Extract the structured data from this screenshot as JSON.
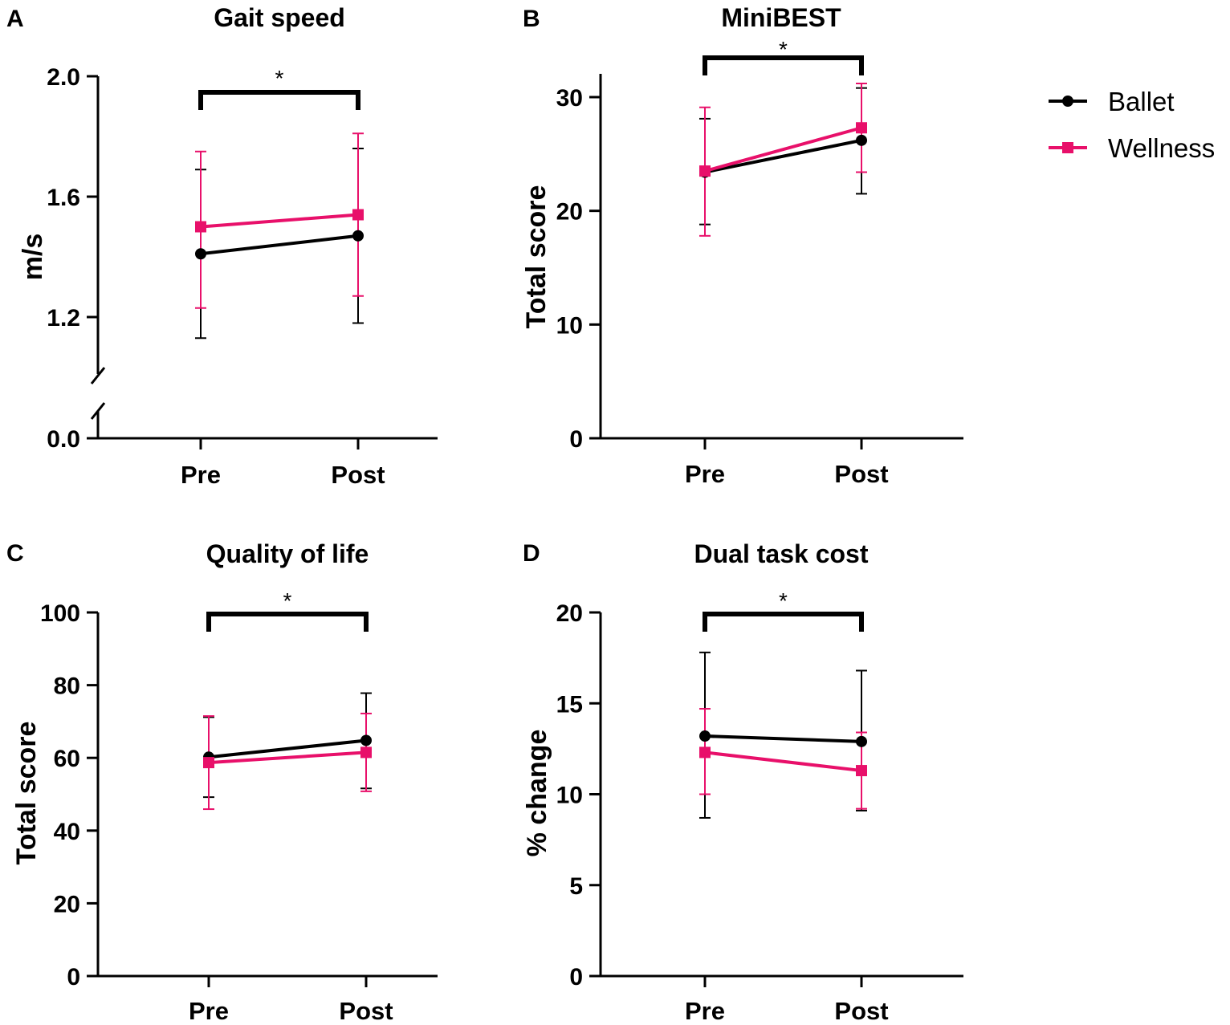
{
  "colors": {
    "ballet": "#000000",
    "wellness": "#e8106a"
  },
  "legend": [
    {
      "name": "Ballet",
      "color": "#000000",
      "marker": "circle"
    },
    {
      "name": "Wellness",
      "color": "#e8106a",
      "marker": "square"
    }
  ],
  "chart_data": [
    {
      "panel": "A",
      "type": "line",
      "title": "Gait speed",
      "ylabel": "m/s",
      "xlabel": "",
      "categories": [
        "Pre",
        "Post"
      ],
      "y_axis_break": true,
      "ylim": [
        1.0,
        2.0
      ],
      "yticks": [
        "0.0",
        "1.2",
        "1.6",
        "2.0"
      ],
      "significance": "*",
      "series": [
        {
          "name": "Ballet",
          "values": [
            1.41,
            1.47
          ],
          "err_low": [
            1.13,
            1.18
          ],
          "err_high": [
            1.69,
            1.76
          ]
        },
        {
          "name": "Wellness",
          "values": [
            1.5,
            1.54
          ],
          "err_low": [
            1.23,
            1.27
          ],
          "err_high": [
            1.75,
            1.81
          ]
        }
      ]
    },
    {
      "panel": "B",
      "type": "line",
      "title": "MiniBEST",
      "ylabel": "Total score",
      "xlabel": "",
      "categories": [
        "Pre",
        "Post"
      ],
      "ylim": [
        0,
        32
      ],
      "yticks": [
        "0",
        "10",
        "20",
        "30"
      ],
      "significance": "*",
      "series": [
        {
          "name": "Ballet",
          "values": [
            23.4,
            26.2
          ],
          "err_low": [
            18.8,
            21.5
          ],
          "err_high": [
            28.1,
            30.8
          ]
        },
        {
          "name": "Wellness",
          "values": [
            23.5,
            27.3
          ],
          "err_low": [
            17.8,
            23.4
          ],
          "err_high": [
            29.1,
            31.2
          ]
        }
      ]
    },
    {
      "panel": "C",
      "type": "line",
      "title": "Quality of life",
      "ylabel": "Total score",
      "xlabel": "",
      "categories": [
        "Pre",
        "Post"
      ],
      "ylim": [
        0,
        100
      ],
      "yticks": [
        "0",
        "20",
        "40",
        "60",
        "80",
        "100"
      ],
      "significance": "*",
      "series": [
        {
          "name": "Ballet",
          "values": [
            60.2,
            64.8
          ],
          "err_low": [
            49.2,
            51.6
          ],
          "err_high": [
            71.2,
            77.8
          ]
        },
        {
          "name": "Wellness",
          "values": [
            58.7,
            61.5
          ],
          "err_low": [
            45.9,
            50.8
          ],
          "err_high": [
            71.5,
            72.2
          ]
        }
      ]
    },
    {
      "panel": "D",
      "type": "line",
      "title": "Dual task cost",
      "ylabel": "% change",
      "xlabel": "",
      "categories": [
        "Pre",
        "Post"
      ],
      "ylim": [
        0,
        20
      ],
      "yticks": [
        "0",
        "5",
        "10",
        "15",
        "20"
      ],
      "significance": "*",
      "series": [
        {
          "name": "Ballet",
          "values": [
            13.2,
            12.9
          ],
          "err_low": [
            8.7,
            9.1
          ],
          "err_high": [
            17.8,
            16.8
          ]
        },
        {
          "name": "Wellness",
          "values": [
            12.3,
            11.3
          ],
          "err_low": [
            10.0,
            9.2
          ],
          "err_high": [
            14.7,
            13.4
          ]
        }
      ]
    }
  ]
}
